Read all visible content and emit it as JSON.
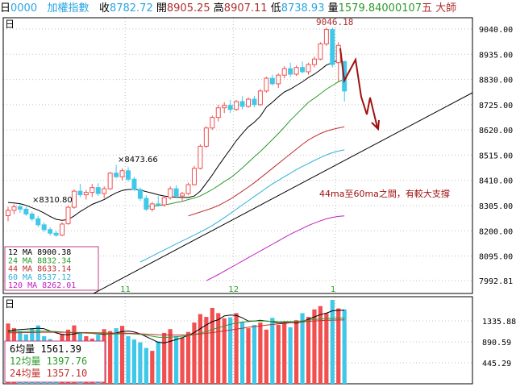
{
  "topbar": {
    "period": "日",
    "code": "0000",
    "name": "加權指數",
    "close_label": "收",
    "close": "8782.72",
    "open_label": "開",
    "open": "8905.25",
    "high_label": "高",
    "high": "8907.11",
    "low_label": "低",
    "low": "8738.93",
    "vol_label": "量",
    "vol": "1579.84",
    "extra": "000107",
    "tail": "五 大師"
  },
  "price_panel": {
    "period_label": "日",
    "peak_label": "9046.18",
    "mark_8473": "×8473.66",
    "mark_8310": "×8310.80",
    "annotation": "44ma至60ma之間，有較大支撐",
    "month_labels": [
      "11",
      "12",
      "1"
    ],
    "y_ticks": [
      "9040.00",
      "8935.00",
      "8830.00",
      "8725.00",
      "8620.00",
      "8515.00",
      "8410.00",
      "8305.00",
      "8200.00",
      "8095.00",
      "7992.81"
    ],
    "legend": [
      {
        "label": "12  MA  8900.38",
        "color": "#000000"
      },
      {
        "label": "24  MA  8832.34",
        "color": "#2a9a2a"
      },
      {
        "label": "44  MA  8633.14",
        "color": "#c03030"
      },
      {
        "label": "60  MA  8537.12",
        "color": "#30b0d8"
      },
      {
        "label": "120 MA  8262.01",
        "color": "#c020c0"
      }
    ]
  },
  "volume_panel": {
    "period_label": "日",
    "y_ticks": [
      "1335.88",
      "890.59",
      "445.29"
    ],
    "legend": [
      {
        "label": "6均量  1561.39",
        "color": "#000000"
      },
      {
        "label": "12均量  1397.76",
        "color": "#2a9a2a"
      },
      {
        "label": "24均量  1357.10",
        "color": "#c03030"
      }
    ]
  },
  "colors": {
    "up": "#f05050",
    "down": "#40c8e8",
    "arrow": "#a01010",
    "grid": "#c0c0c0",
    "frame": "#000000"
  },
  "chart_data": {
    "type": "candlestick",
    "title": "加權指數",
    "ylim": [
      7992.81,
      9040.0
    ],
    "candles": [
      [
        8263,
        8300,
        8240,
        8285
      ],
      [
        8285,
        8310,
        8270,
        8300
      ],
      [
        8300,
        8311,
        8275,
        8290
      ],
      [
        8290,
        8300,
        8262,
        8270
      ],
      [
        8270,
        8280,
        8240,
        8250
      ],
      [
        8250,
        8262,
        8215,
        8225
      ],
      [
        8225,
        8235,
        8195,
        8205
      ],
      [
        8205,
        8215,
        8180,
        8190
      ],
      [
        8190,
        8200,
        8175,
        8182
      ],
      [
        8182,
        8235,
        8178,
        8228
      ],
      [
        8230,
        8305,
        8225,
        8298
      ],
      [
        8298,
        8372,
        8292,
        8365
      ],
      [
        8365,
        8395,
        8340,
        8350
      ],
      [
        8350,
        8370,
        8330,
        8360
      ],
      [
        8360,
        8395,
        8340,
        8380
      ],
      [
        8380,
        8398,
        8345,
        8355
      ],
      [
        8355,
        8385,
        8335,
        8375
      ],
      [
        8375,
        8445,
        8370,
        8440
      ],
      [
        8440,
        8474,
        8420,
        8425
      ],
      [
        8425,
        8460,
        8410,
        8450
      ],
      [
        8450,
        8465,
        8405,
        8415
      ],
      [
        8415,
        8425,
        8365,
        8372
      ],
      [
        8372,
        8380,
        8325,
        8335
      ],
      [
        8335,
        8348,
        8282,
        8290
      ],
      [
        8290,
        8320,
        8280,
        8312
      ],
      [
        8312,
        8345,
        8300,
        8308
      ],
      [
        8308,
        8345,
        8300,
        8338
      ],
      [
        8338,
        8385,
        8330,
        8375
      ],
      [
        8375,
        8390,
        8335,
        8345
      ],
      [
        8345,
        8362,
        8325,
        8355
      ],
      [
        8355,
        8400,
        8348,
        8392
      ],
      [
        8392,
        8470,
        8388,
        8460
      ],
      [
        8460,
        8560,
        8455,
        8552
      ],
      [
        8552,
        8635,
        8545,
        8628
      ],
      [
        8628,
        8680,
        8620,
        8672
      ],
      [
        8672,
        8725,
        8655,
        8712
      ],
      [
        8712,
        8735,
        8690,
        8722
      ],
      [
        8722,
        8745,
        8690,
        8705
      ],
      [
        8705,
        8745,
        8700,
        8738
      ],
      [
        8738,
        8760,
        8705,
        8718
      ],
      [
        8718,
        8755,
        8712,
        8748
      ],
      [
        8748,
        8762,
        8715,
        8725
      ],
      [
        8725,
        8790,
        8720,
        8782
      ],
      [
        8782,
        8842,
        8775,
        8835
      ],
      [
        8835,
        8850,
        8805,
        8812
      ],
      [
        8812,
        8855,
        8795,
        8848
      ],
      [
        8848,
        8885,
        8835,
        8875
      ],
      [
        8875,
        8900,
        8840,
        8852
      ],
      [
        8852,
        8888,
        8845,
        8880
      ],
      [
        8880,
        8905,
        8855,
        8862
      ],
      [
        8862,
        8900,
        8850,
        8892
      ],
      [
        8892,
        8925,
        8880,
        8915
      ],
      [
        8915,
        8985,
        8910,
        8978
      ],
      [
        8978,
        9046,
        8970,
        9038
      ],
      [
        9038,
        9046,
        8880,
        8892
      ],
      [
        8900,
        8985,
        8820,
        8972
      ],
      [
        8905,
        8907,
        8738,
        8782
      ]
    ],
    "ma": [
      {
        "name": "12 MA",
        "value": 8900.38,
        "color": "#000000",
        "values": [
          8318,
          8316,
          8313,
          8306,
          8296,
          8286,
          8274,
          8260,
          8248,
          8244,
          8247,
          8262,
          8280,
          8295,
          8310,
          8320,
          8330,
          8345,
          8358,
          8368,
          8372,
          8372,
          8370,
          8363,
          8357,
          8350,
          8345,
          8342,
          8340,
          8339,
          8339,
          8345,
          8365,
          8398,
          8432,
          8470,
          8505,
          8540,
          8575,
          8605,
          8633,
          8652,
          8677,
          8715,
          8735,
          8758,
          8778,
          8790,
          8805,
          8820,
          8838,
          8852,
          8870,
          8890,
          8900,
          8910,
          8900
        ]
      },
      {
        "name": "24 MA",
        "value": 8832.34,
        "color": "#2a9a2a",
        "values": [
          null,
          null,
          null,
          null,
          null,
          null,
          null,
          null,
          null,
          null,
          null,
          null,
          null,
          null,
          null,
          null,
          null,
          null,
          null,
          null,
          null,
          null,
          null,
          8300,
          8302,
          8305,
          8308,
          8312,
          8318,
          8322,
          8330,
          8336,
          8345,
          8358,
          8372,
          8388,
          8405,
          8420,
          8440,
          8462,
          8485,
          8508,
          8530,
          8555,
          8580,
          8605,
          8632,
          8660,
          8685,
          8710,
          8735,
          8752,
          8770,
          8790,
          8805,
          8820,
          8832
        ]
      },
      {
        "name": "44 MA",
        "value": 8633.14,
        "color": "#c03030",
        "values": [
          null,
          null,
          null,
          null,
          null,
          null,
          null,
          null,
          null,
          null,
          null,
          null,
          null,
          null,
          null,
          null,
          null,
          null,
          null,
          null,
          null,
          null,
          null,
          null,
          null,
          null,
          null,
          null,
          null,
          null,
          8262,
          8270,
          8278,
          8286,
          8295,
          8305,
          8318,
          8332,
          8348,
          8365,
          8382,
          8400,
          8420,
          8440,
          8460,
          8480,
          8500,
          8520,
          8540,
          8560,
          8578,
          8592,
          8605,
          8615,
          8622,
          8628,
          8633
        ]
      },
      {
        "name": "60 MA",
        "value": 8537.12,
        "color": "#30b0d8",
        "values": [
          null,
          null,
          null,
          null,
          null,
          null,
          null,
          null,
          null,
          null,
          null,
          null,
          null,
          null,
          null,
          null,
          null,
          null,
          null,
          null,
          null,
          null,
          8070,
          8082,
          8095,
          8108,
          8120,
          8133,
          8146,
          8158,
          8170,
          8182,
          8195,
          8208,
          8222,
          8238,
          8255,
          8272,
          8290,
          8308,
          8325,
          8343,
          8360,
          8378,
          8395,
          8410,
          8425,
          8440,
          8455,
          8468,
          8480,
          8493,
          8505,
          8516,
          8525,
          8532,
          8537
        ]
      },
      {
        "name": "120 MA",
        "value": 8262.01,
        "color": "#c020c0",
        "values": [
          null,
          null,
          null,
          null,
          null,
          null,
          null,
          null,
          null,
          null,
          null,
          null,
          null,
          null,
          null,
          null,
          null,
          null,
          null,
          null,
          null,
          null,
          null,
          null,
          null,
          null,
          null,
          null,
          null,
          null,
          null,
          null,
          null,
          7992,
          8005,
          8018,
          8032,
          8046,
          8060,
          8074,
          8088,
          8102,
          8116,
          8130,
          8144,
          8158,
          8172,
          8186,
          8198,
          8210,
          8222,
          8232,
          8242,
          8250,
          8256,
          8260,
          8262
        ]
      }
    ],
    "volume": {
      "ylim": [
        0,
        1781
      ],
      "values": [
        1280,
        1180,
        1120,
        1050,
        1180,
        1240,
        1010,
        950,
        880,
        1060,
        1150,
        1240,
        1080,
        1010,
        960,
        1040,
        1160,
        1120,
        1180,
        1230,
        1010,
        940,
        880,
        760,
        700,
        900,
        1080,
        1160,
        1010,
        980,
        1100,
        1300,
        1480,
        1420,
        1610,
        1500,
        1390,
        1410,
        1500,
        1320,
        1180,
        1250,
        1300,
        1150,
        1400,
        1250,
        1300,
        1200,
        1350,
        1500,
        1420,
        1580,
        1650,
        1500,
        1780,
        1600,
        1580
      ],
      "ma": [
        {
          "name": "6均量",
          "value": 1561.39,
          "color": "#000000",
          "values": [
            1120,
            1140,
            1150,
            1160,
            1170,
            1180,
            1170,
            1120,
            1080,
            1050,
            1040,
            1060,
            1080,
            1090,
            1070,
            1060,
            1050,
            1060,
            1080,
            1110,
            1120,
            1100,
            1060,
            1000,
            940,
            880,
            870,
            900,
            940,
            980,
            1030,
            1090,
            1170,
            1250,
            1320,
            1360,
            1440,
            1460,
            1450,
            1400,
            1330,
            1330,
            1350,
            1330,
            1320,
            1290,
            1300,
            1300,
            1290,
            1320,
            1370,
            1420,
            1470,
            1500,
            1550,
            1560,
            1561
          ]
        },
        {
          "name": "12均量",
          "value": 1397.76,
          "color": "#2a9a2a",
          "values": [
            1100,
            1105,
            1110,
            1112,
            1115,
            1120,
            1118,
            1115,
            1110,
            1100,
            1090,
            1080,
            1080,
            1075,
            1070,
            1065,
            1060,
            1055,
            1058,
            1060,
            1065,
            1060,
            1050,
            1030,
            1010,
            990,
            985,
            990,
            1000,
            1010,
            1025,
            1045,
            1075,
            1110,
            1150,
            1190,
            1230,
            1260,
            1290,
            1310,
            1320,
            1330,
            1335,
            1330,
            1325,
            1320,
            1320,
            1320,
            1325,
            1335,
            1350,
            1365,
            1375,
            1385,
            1390,
            1395,
            1398
          ]
        },
        {
          "name": "24均量",
          "value": 1357.1,
          "color": "#c03030",
          "values": [
            1080,
            1082,
            1085,
            1088,
            1090,
            1092,
            1094,
            1095,
            1096,
            1095,
            1094,
            1093,
            1090,
            1088,
            1085,
            1082,
            1080,
            1078,
            1076,
            1074,
            1072,
            1068,
            1062,
            1055,
            1048,
            1042,
            1038,
            1036,
            1036,
            1038,
            1042,
            1048,
            1058,
            1072,
            1088,
            1105,
            1122,
            1140,
            1160,
            1180,
            1200,
            1215,
            1230,
            1245,
            1258,
            1270,
            1282,
            1294,
            1305,
            1316,
            1326,
            1334,
            1341,
            1347,
            1352,
            1355,
            1357
          ]
        }
      ]
    }
  }
}
